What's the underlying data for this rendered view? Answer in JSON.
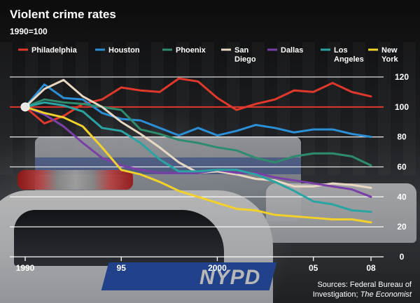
{
  "chart_data": {
    "type": "line",
    "title": "Violent crime rates",
    "subtitle": "1990=100",
    "x": [
      1990,
      1991,
      1992,
      1993,
      1994,
      1995,
      1996,
      1997,
      1998,
      1999,
      2000,
      2001,
      2002,
      2003,
      2004,
      2005,
      2006,
      2007,
      2008
    ],
    "x_tick_values": [
      1990,
      1995,
      2000,
      2005,
      2008
    ],
    "x_tick_labels": [
      "1990",
      "95",
      "2000",
      "05",
      "08"
    ],
    "xlim": [
      1990,
      2008
    ],
    "ylim": [
      0,
      120
    ],
    "y_ticks": [
      0,
      20,
      40,
      60,
      80,
      100,
      120
    ],
    "y_axis_side": "right",
    "grid": true,
    "legend_position": "top",
    "baseline_marker": {
      "x": 1990,
      "y": 100
    },
    "series": [
      {
        "name": "Philadelphia",
        "color": "#e0392b",
        "values": [
          100,
          89,
          94,
          102,
          105,
          113,
          111,
          110,
          119,
          117,
          106,
          98,
          102,
          105,
          111,
          110,
          116,
          110,
          107
        ]
      },
      {
        "name": "Houston",
        "color": "#2b8fd6",
        "values": [
          100,
          115,
          106,
          105,
          96,
          92,
          91,
          86,
          81,
          86,
          81,
          84,
          88,
          86,
          83,
          85,
          85,
          82,
          80
        ]
      },
      {
        "name": "Phoenix",
        "color": "#2e8b6e",
        "values": [
          100,
          105,
          103,
          102,
          100,
          98,
          85,
          82,
          78,
          76,
          73,
          71,
          66,
          63,
          67,
          69,
          69,
          67,
          61
        ]
      },
      {
        "name": "San Diego",
        "color": "#e8d8c2",
        "values": [
          100,
          112,
          118,
          107,
          100,
          90,
          82,
          73,
          63,
          56,
          57,
          55,
          52,
          51,
          47,
          47,
          49,
          48,
          46
        ]
      },
      {
        "name": "Dallas",
        "color": "#7a3fa6",
        "values": [
          100,
          95,
          87,
          76,
          66,
          61,
          58,
          56,
          56,
          56,
          58,
          56,
          56,
          53,
          51,
          49,
          47,
          45,
          40
        ]
      },
      {
        "name": "Los Angeles",
        "color": "#2aa3a3",
        "values": [
          100,
          103,
          101,
          97,
          86,
          84,
          76,
          65,
          57,
          57,
          58,
          58,
          55,
          50,
          44,
          37,
          35,
          31,
          30
        ]
      },
      {
        "name": "New York",
        "color": "#f2d22a",
        "values": [
          100,
          96,
          93,
          87,
          73,
          58,
          55,
          50,
          44,
          40,
          36,
          32,
          31,
          28,
          27,
          26,
          25,
          25,
          23
        ]
      }
    ],
    "source_lines": [
      "Sources: Federal Bureau of",
      "Investigation; The Economist"
    ]
  }
}
